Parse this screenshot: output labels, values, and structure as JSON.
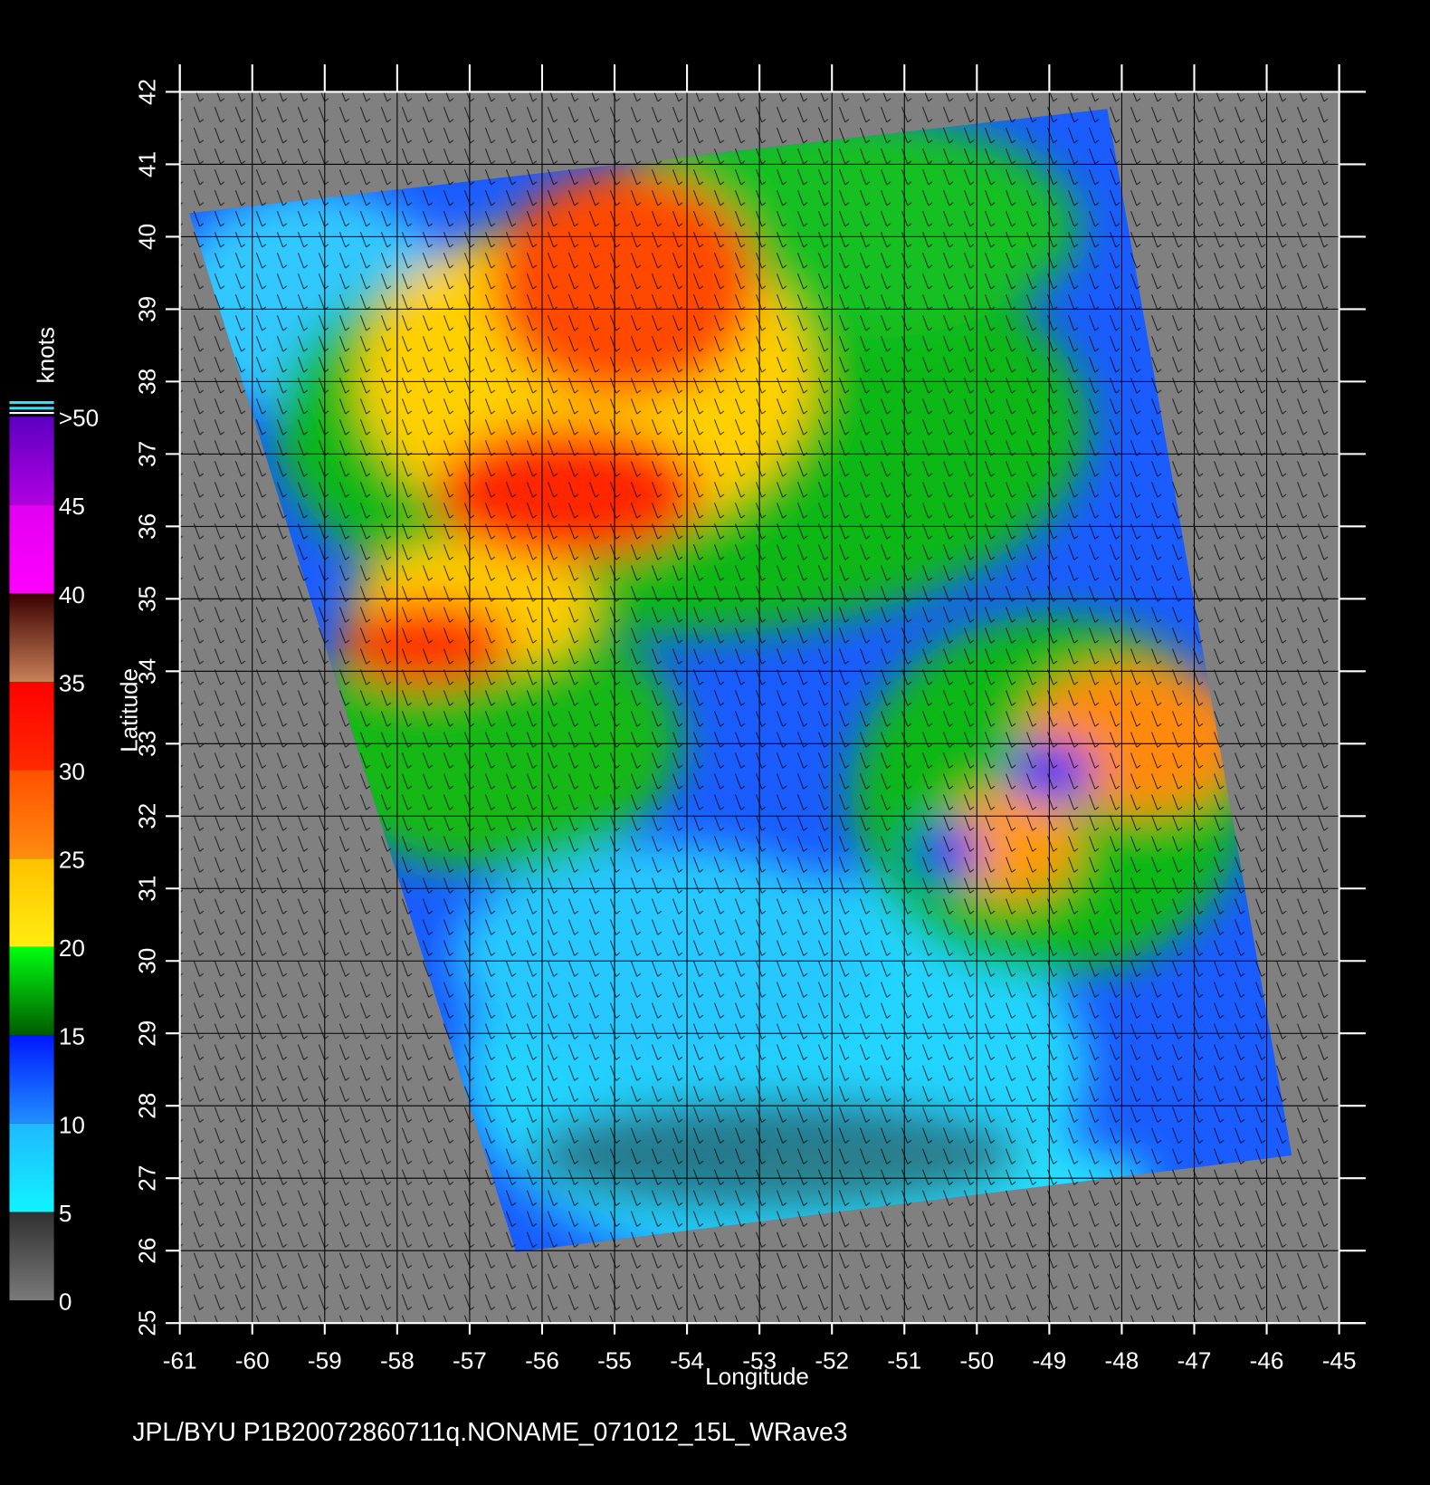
{
  "chart_data": {
    "type": "map",
    "footer": "JPL/BYU  P1B20072860711q.NONAME_071012_15L_WRave3",
    "x_label": "Longitude",
    "y_label": "Latitude",
    "xlim": [
      -61,
      -45
    ],
    "ylim": [
      25,
      42
    ],
    "xticks": [
      -61,
      -60,
      -59,
      -58,
      -57,
      -56,
      -55,
      -54,
      -53,
      -52,
      -51,
      -50,
      -49,
      -48,
      -47,
      -46,
      -45
    ],
    "yticks": [
      25,
      26,
      27,
      28,
      29,
      30,
      31,
      32,
      33,
      34,
      35,
      36,
      37,
      38,
      39,
      40,
      41,
      42
    ],
    "grid": true,
    "colorbar": {
      "label": "knots",
      "lim": [
        0,
        50
      ],
      "ticks": [
        0,
        5,
        10,
        15,
        20,
        25,
        30,
        35,
        40,
        45,
        {
          "value": 50,
          "label": ">50"
        }
      ],
      "colors": [
        [
          "#7a7a7a",
          "#303030"
        ],
        [
          "#10f4ff",
          "#20b8ff"
        ],
        [
          "#2090ff",
          "#0018ff"
        ],
        [
          "#005a00",
          "#00ff10"
        ],
        [
          "#ffee10",
          "#ffc000"
        ],
        [
          "#ff8c10",
          "#ff5000"
        ],
        [
          "#ff2a00",
          "#ff0000"
        ],
        [
          "#c88058",
          "#3a0000"
        ],
        [
          "#ff00ff",
          "#e000f0"
        ],
        [
          "#b000e0",
          "#5c00c0"
        ]
      ]
    }
  }
}
